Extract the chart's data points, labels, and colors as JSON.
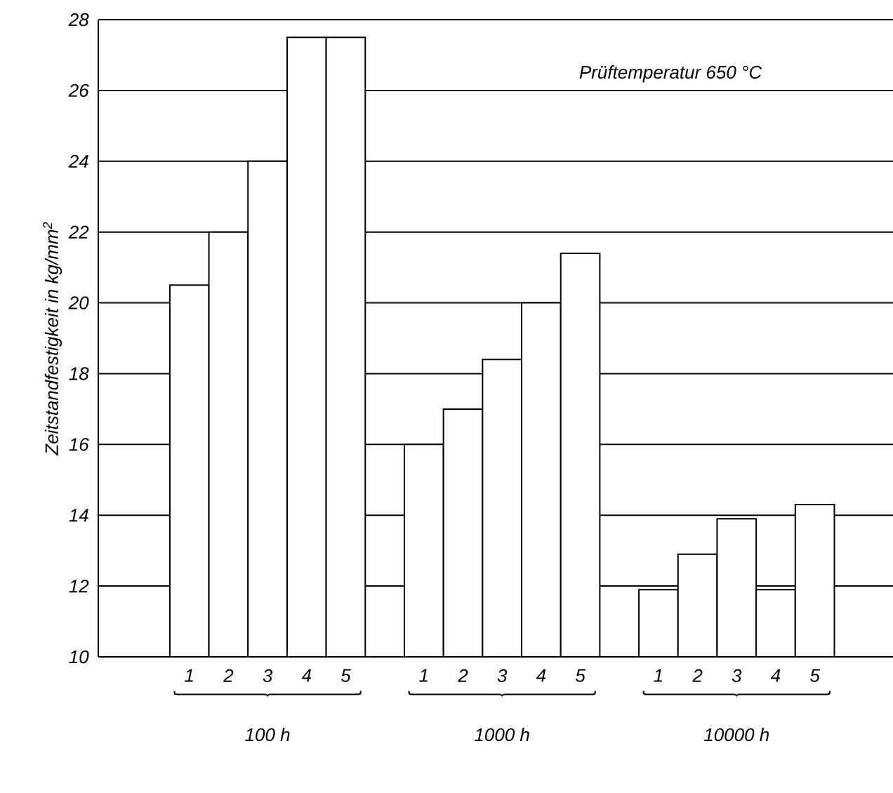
{
  "chart_data": {
    "type": "bar",
    "ylabel": "Zeitstandfestigkeit in kg/mm$^{2}$",
    "categories": [
      "1",
      "2",
      "3",
      "4",
      "5",
      null,
      "1",
      "2",
      "3",
      "4",
      "5",
      null,
      "1",
      "2",
      "3",
      "4",
      "5"
    ],
    "values": [
      20.5,
      22,
      24,
      27.5,
      27.5,
      null,
      16,
      17,
      18.4,
      20,
      21.4,
      null,
      11.9,
      12.9,
      13.9,
      11.9,
      14.3
    ],
    "color": "#000000",
    "ylim": [
      10,
      28
    ],
    "yticks": [
      10,
      12,
      14,
      16,
      18,
      20,
      22,
      24,
      26,
      28
    ],
    "grid": "y",
    "annotations": [
      "Prüftemperatur 650 °C",
      "100 h",
      "1000 h",
      "10000 h"
    ]
  }
}
